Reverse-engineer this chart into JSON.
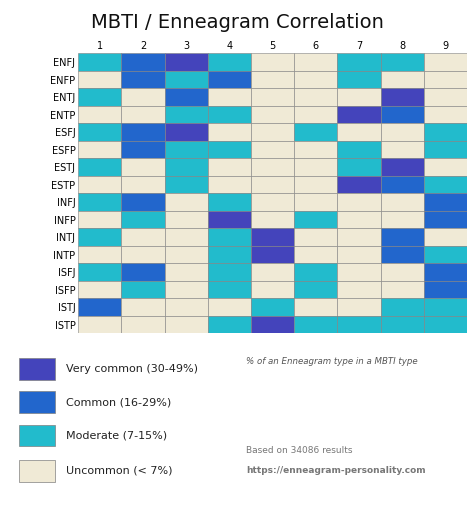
{
  "title": "MBTI / Enneagram Correlation",
  "mbti_types": [
    "ENFJ",
    "ENFP",
    "ENTJ",
    "ENTP",
    "ESFJ",
    "ESFP",
    "ESTJ",
    "ESTP",
    "INFJ",
    "INFP",
    "INTJ",
    "INTP",
    "ISFJ",
    "ISFP",
    "ISTJ",
    "ISTP"
  ],
  "enneagram_types": [
    "1",
    "2",
    "3",
    "4",
    "5",
    "6",
    "7",
    "8",
    "9"
  ],
  "colors": {
    "very_common": "#4444bb",
    "common": "#2266cc",
    "moderate": "#22bbcc",
    "uncommon": "#f0ead6"
  },
  "legend": [
    {
      "label": "Very common (30-49%)",
      "color": "#4444bb"
    },
    {
      "label": "Common (16-29%)",
      "color": "#2266cc"
    },
    {
      "label": "Moderate (7-15%)",
      "color": "#22bbcc"
    },
    {
      "label": "Uncommon (< 7%)",
      "color": "#f0ead6"
    }
  ],
  "footnote_italic": "% of an Enneagram type in a MBTI type",
  "footnote_normal": "Based on 34086 results",
  "footnote_bold": "https://enneagram-personality.com",
  "grid_data": {
    "ENFJ": [
      "M",
      "C",
      "V",
      "M",
      "U",
      "U",
      "M",
      "M",
      "U"
    ],
    "ENFP": [
      "U",
      "C",
      "M",
      "C",
      "U",
      "U",
      "M",
      "U",
      "U"
    ],
    "ENTJ": [
      "M",
      "U",
      "C",
      "U",
      "U",
      "U",
      "U",
      "V",
      "U"
    ],
    "ENTP": [
      "U",
      "U",
      "M",
      "M",
      "U",
      "U",
      "V",
      "C",
      "U"
    ],
    "ESFJ": [
      "M",
      "C",
      "V",
      "U",
      "U",
      "M",
      "U",
      "U",
      "M"
    ],
    "ESFP": [
      "U",
      "C",
      "M",
      "M",
      "U",
      "U",
      "M",
      "U",
      "M"
    ],
    "ESTJ": [
      "M",
      "U",
      "M",
      "U",
      "U",
      "U",
      "M",
      "V",
      "U"
    ],
    "ESTP": [
      "U",
      "U",
      "M",
      "U",
      "U",
      "U",
      "V",
      "C",
      "M"
    ],
    "INFJ": [
      "M",
      "C",
      "U",
      "M",
      "U",
      "U",
      "U",
      "U",
      "C"
    ],
    "INFP": [
      "U",
      "M",
      "U",
      "V",
      "U",
      "M",
      "U",
      "U",
      "C"
    ],
    "INTJ": [
      "M",
      "U",
      "U",
      "M",
      "V",
      "U",
      "U",
      "C",
      "U"
    ],
    "INTP": [
      "U",
      "U",
      "U",
      "M",
      "V",
      "U",
      "U",
      "C",
      "M"
    ],
    "ISFJ": [
      "M",
      "C",
      "U",
      "M",
      "U",
      "M",
      "U",
      "U",
      "C"
    ],
    "ISFP": [
      "U",
      "M",
      "U",
      "M",
      "U",
      "M",
      "U",
      "U",
      "C"
    ],
    "ISTJ": [
      "C",
      "U",
      "U",
      "U",
      "M",
      "U",
      "U",
      "M",
      "M"
    ],
    "ISTP": [
      "U",
      "U",
      "U",
      "M",
      "V",
      "M",
      "M",
      "M",
      "M"
    ]
  },
  "background_color": "#ffffff",
  "grid_line_color": "#808080",
  "title_fontsize": 14,
  "tick_fontsize": 7,
  "label_fontsize": 7.5,
  "legend_fontsize": 8
}
